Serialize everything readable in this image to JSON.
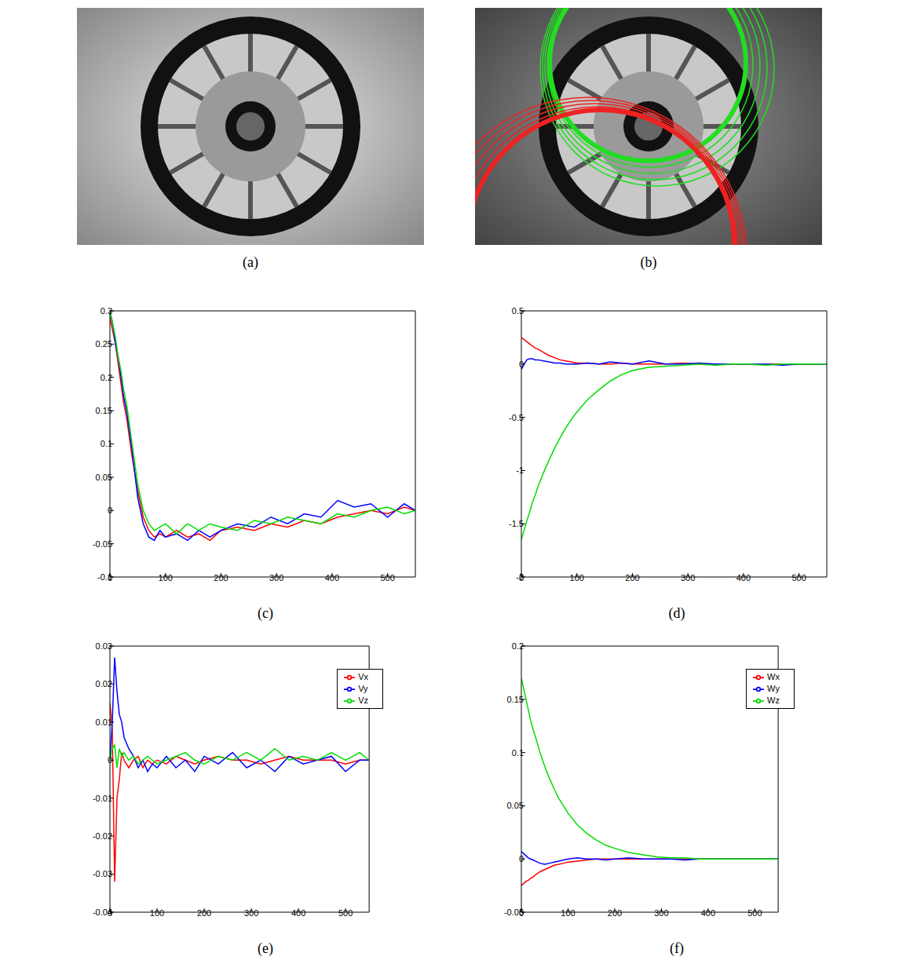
{
  "panels": [
    {
      "label": "(a)"
    },
    {
      "label": "(b)"
    }
  ],
  "chart_data": [
    {
      "type": "line",
      "title": "(c)",
      "x": [
        0,
        5,
        10,
        15,
        20,
        25,
        30,
        40,
        50,
        60,
        70,
        80,
        90,
        100,
        120,
        140,
        160,
        180,
        200,
        230,
        260,
        290,
        320,
        350,
        380,
        410,
        440,
        470,
        500,
        530,
        550
      ],
      "xlim": [
        0,
        550
      ],
      "xticks": [
        0,
        100,
        200,
        300,
        400,
        500
      ],
      "ylim": [
        -0.1,
        0.3
      ],
      "yticks": [
        -0.1,
        -0.05,
        0,
        0.05,
        0.1,
        0.15,
        0.2,
        0.25,
        0.3
      ],
      "series": [
        {
          "color": "#ff0000",
          "values": [
            0.29,
            0.27,
            0.25,
            0.22,
            0.19,
            0.16,
            0.14,
            0.08,
            0.03,
            -0.01,
            -0.03,
            -0.04,
            -0.035,
            -0.04,
            -0.03,
            -0.04,
            -0.035,
            -0.045,
            -0.03,
            -0.025,
            -0.03,
            -0.02,
            -0.025,
            -0.015,
            -0.02,
            -0.01,
            -0.005,
            0,
            -0.005,
            0.005,
            0
          ]
        },
        {
          "color": "#0000ff",
          "values": [
            0.3,
            0.28,
            0.25,
            0.23,
            0.2,
            0.17,
            0.15,
            0.09,
            0.02,
            -0.02,
            -0.04,
            -0.045,
            -0.03,
            -0.04,
            -0.035,
            -0.045,
            -0.03,
            -0.04,
            -0.03,
            -0.02,
            -0.025,
            -0.01,
            -0.02,
            -0.005,
            -0.01,
            0.015,
            0.005,
            0.01,
            -0.01,
            0.01,
            0
          ]
        },
        {
          "color": "#00dd00",
          "values": [
            0.3,
            0.28,
            0.26,
            0.23,
            0.21,
            0.18,
            0.16,
            0.1,
            0.04,
            0,
            -0.02,
            -0.03,
            -0.025,
            -0.02,
            -0.035,
            -0.02,
            -0.03,
            -0.02,
            -0.025,
            -0.03,
            -0.015,
            -0.02,
            -0.01,
            -0.015,
            -0.02,
            -0.005,
            -0.01,
            0,
            0.005,
            -0.005,
            0
          ]
        }
      ]
    },
    {
      "type": "line",
      "title": "(d)",
      "x": [
        0,
        5,
        10,
        15,
        20,
        25,
        30,
        40,
        50,
        60,
        70,
        80,
        90,
        100,
        120,
        140,
        160,
        180,
        200,
        230,
        260,
        290,
        320,
        350,
        380,
        410,
        440,
        470,
        500,
        530,
        550
      ],
      "xlim": [
        0,
        550
      ],
      "xticks": [
        0,
        100,
        200,
        300,
        400,
        500
      ],
      "ylim": [
        -2,
        0.5
      ],
      "yticks": [
        -2,
        -1.5,
        -1,
        -0.5,
        0,
        0.5
      ],
      "series": [
        {
          "color": "#ff0000",
          "values": [
            0.25,
            0.23,
            0.21,
            0.19,
            0.17,
            0.15,
            0.14,
            0.11,
            0.08,
            0.06,
            0.04,
            0.03,
            0.02,
            0.01,
            0.01,
            0,
            0,
            0.01,
            0,
            0,
            0,
            0.01,
            0,
            0,
            0,
            0,
            0,
            0,
            0,
            0,
            0
          ]
        },
        {
          "color": "#0000ff",
          "values": [
            -0.05,
            0,
            0.04,
            0.05,
            0.05,
            0.04,
            0.04,
            0.03,
            0.02,
            0.01,
            0.01,
            0,
            0,
            0,
            0.01,
            0,
            0.02,
            0.01,
            0,
            0.03,
            0,
            0,
            0.01,
            0,
            0,
            0,
            0,
            -0.01,
            0,
            0,
            0
          ]
        },
        {
          "color": "#00dd00",
          "values": [
            -1.65,
            -1.56,
            -1.47,
            -1.39,
            -1.3,
            -1.23,
            -1.15,
            -1.02,
            -0.9,
            -0.79,
            -0.69,
            -0.6,
            -0.52,
            -0.45,
            -0.33,
            -0.24,
            -0.16,
            -0.1,
            -0.06,
            -0.03,
            -0.02,
            -0.01,
            0,
            -0.01,
            0,
            0,
            -0.01,
            0,
            0,
            0,
            0
          ]
        }
      ]
    },
    {
      "type": "line",
      "title": "(e)",
      "legend": "upper right",
      "x": [
        0,
        5,
        10,
        15,
        20,
        25,
        30,
        40,
        50,
        60,
        70,
        80,
        90,
        100,
        120,
        140,
        160,
        180,
        200,
        230,
        260,
        290,
        320,
        350,
        380,
        410,
        440,
        470,
        500,
        530,
        550
      ],
      "xlim": [
        0,
        550
      ],
      "xticks": [
        0,
        100,
        200,
        300,
        400,
        500
      ],
      "ylim": [
        -0.04,
        0.03
      ],
      "yticks": [
        -0.04,
        -0.03,
        -0.02,
        -0.01,
        0,
        0.01,
        0.02,
        0.03
      ],
      "series": [
        {
          "name": "Vx",
          "color": "#ff0000",
          "values": [
            0.015,
            0.008,
            -0.032,
            -0.01,
            -0.005,
            0.002,
            0,
            -0.002,
            0,
            0.001,
            -0.002,
            0,
            -0.001,
            0,
            -0.001,
            0.001,
            0,
            -0.001,
            0,
            0.001,
            0,
            0,
            -0.001,
            0,
            0.001,
            0,
            0,
            0,
            -0.001,
            0,
            0
          ]
        },
        {
          "name": "Vy",
          "color": "#0000ff",
          "values": [
            0,
            0.01,
            0.027,
            0.018,
            0.012,
            0.01,
            0.006,
            0.003,
            0.001,
            -0.002,
            0,
            -0.003,
            -0.001,
            -0.002,
            0.001,
            -0.002,
            0,
            -0.003,
            0.001,
            -0.001,
            0.002,
            -0.002,
            0,
            -0.003,
            0.001,
            -0.001,
            0,
            0.001,
            -0.003,
            0,
            0
          ]
        },
        {
          "name": "Vz",
          "color": "#00dd00",
          "values": [
            0,
            0.003,
            0.004,
            -0.002,
            0.003,
            0.001,
            0.002,
            0,
            0.001,
            -0.001,
            0,
            0.001,
            0,
            -0.001,
            0,
            0.001,
            0.002,
            0,
            -0.001,
            0.001,
            0,
            0.002,
            0,
            0.003,
            0,
            0.001,
            0,
            0.002,
            0,
            0.002,
            0
          ]
        }
      ]
    },
    {
      "type": "line",
      "title": "(f)",
      "legend": "upper right",
      "x": [
        0,
        5,
        10,
        15,
        20,
        25,
        30,
        40,
        50,
        60,
        70,
        80,
        90,
        100,
        120,
        140,
        160,
        180,
        200,
        230,
        260,
        290,
        320,
        350,
        380,
        410,
        440,
        470,
        500,
        530,
        550
      ],
      "xlim": [
        0,
        550
      ],
      "xticks": [
        0,
        100,
        200,
        300,
        400,
        500
      ],
      "ylim": [
        -0.05,
        0.2
      ],
      "yticks": [
        -0.05,
        0,
        0.05,
        0.1,
        0.15,
        0.2
      ],
      "series": [
        {
          "name": "Wx",
          "color": "#ff0000",
          "values": [
            -0.025,
            -0.023,
            -0.021,
            -0.02,
            -0.018,
            -0.017,
            -0.015,
            -0.012,
            -0.01,
            -0.008,
            -0.006,
            -0.005,
            -0.004,
            -0.003,
            -0.002,
            -0.001,
            0,
            0,
            0,
            0,
            0,
            0,
            0,
            0,
            0,
            0,
            0,
            0,
            0,
            0,
            0
          ]
        },
        {
          "name": "Wy",
          "color": "#0000ff",
          "values": [
            0.007,
            0.005,
            0.003,
            0.001,
            0,
            -0.001,
            -0.002,
            -0.004,
            -0.005,
            -0.004,
            -0.003,
            -0.002,
            -0.001,
            0,
            0.001,
            0,
            0,
            -0.001,
            0,
            0.001,
            0,
            0,
            0,
            -0.001,
            0,
            0,
            0,
            0,
            0,
            0,
            0
          ]
        },
        {
          "name": "Wz",
          "color": "#00dd00",
          "values": [
            0.17,
            0.16,
            0.15,
            0.14,
            0.13,
            0.122,
            0.115,
            0.1,
            0.087,
            0.076,
            0.066,
            0.057,
            0.05,
            0.043,
            0.032,
            0.024,
            0.018,
            0.013,
            0.01,
            0.006,
            0.004,
            0.002,
            0.001,
            0.001,
            0,
            0,
            0,
            0,
            0,
            0,
            0
          ]
        }
      ]
    }
  ]
}
